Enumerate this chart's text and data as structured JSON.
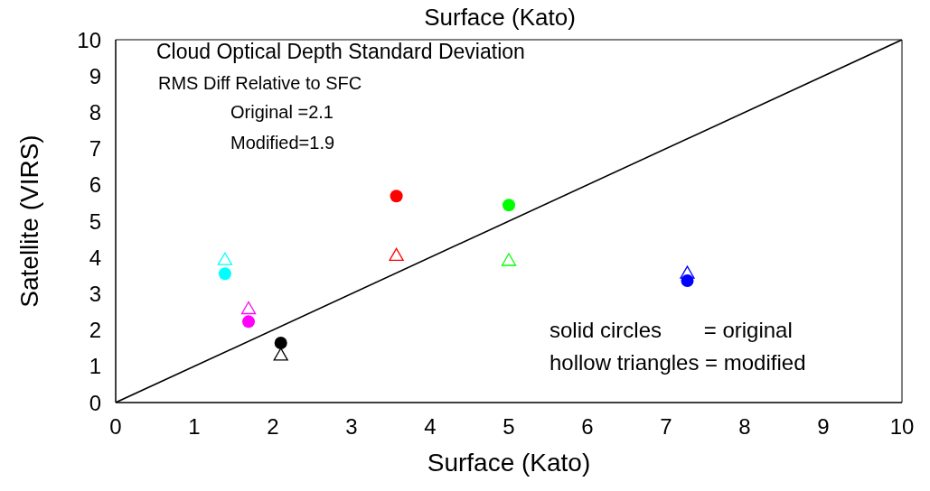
{
  "chart_data": {
    "type": "scatter",
    "title": "Surface (Kato)",
    "xlabel": "Surface (Kato)",
    "ylabel": "Satellite (VIRS)",
    "xlim": [
      0,
      10
    ],
    "ylim": [
      0,
      10
    ],
    "xticks": [
      0,
      1,
      2,
      3,
      4,
      5,
      6,
      7,
      8,
      9,
      10
    ],
    "yticks": [
      0,
      1,
      2,
      3,
      4,
      5,
      6,
      7,
      8,
      9,
      10
    ],
    "grid": false,
    "series": [
      {
        "type": "line",
        "x": [
          0,
          10
        ],
        "values": [
          0,
          10
        ],
        "color": "#000000",
        "marker": "none",
        "line_style": "solid"
      },
      {
        "marker": "circle",
        "x": [
          1.39,
          1.69,
          2.1,
          3.57,
          5.0,
          7.27
        ],
        "values": [
          3.55,
          2.23,
          1.64,
          5.69,
          5.44,
          3.36
        ],
        "colors": [
          "#00ffff",
          "#ff00ff",
          "#000000",
          "#ff0000",
          "#00ff00",
          "#0000ff"
        ]
      },
      {
        "marker": "triangle",
        "x": [
          1.39,
          1.69,
          2.1,
          3.57,
          5.0,
          7.27
        ],
        "values": [
          3.95,
          2.6,
          1.32,
          4.07,
          3.93,
          3.58
        ],
        "colors": [
          "#00ffff",
          "#ff00ff",
          "#000000",
          "#ff0000",
          "#00ff00",
          "#0000ff"
        ]
      }
    ],
    "annotations": [
      "Cloud Optical Depth Standard Deviation",
      "RMS Diff Relative to SFC",
      "Original =2.1",
      "Modified=1.9",
      "solid circles       = original",
      "hollow triangles = modified"
    ]
  }
}
